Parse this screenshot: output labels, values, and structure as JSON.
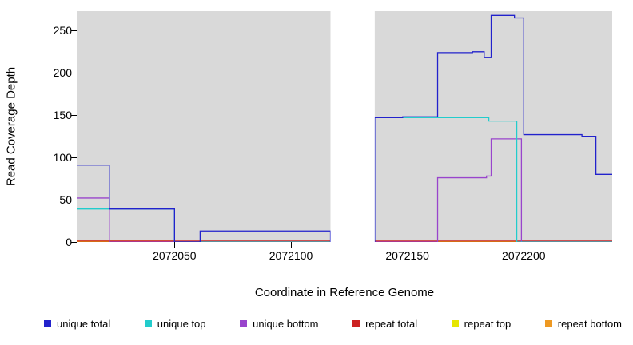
{
  "figure": {
    "x_axis_label": "Coordinate in Reference Genome",
    "y_axis_label": "Read Coverage Depth"
  },
  "chart_data": {
    "type": "line",
    "step": true,
    "title": "",
    "xlabel": "Coordinate in Reference Genome",
    "ylabel": "Read Coverage Depth",
    "xlim": [
      2072008,
      2072238
    ],
    "ylim": [
      0,
      273
    ],
    "x_ticks": [
      2072050,
      2072100,
      2072150,
      2072200
    ],
    "y_ticks": [
      0,
      50,
      100,
      150,
      200,
      250
    ],
    "plot_background": "#d9d9d9",
    "figure_background": "#ffffff",
    "grid": false,
    "legend_position": "bottom",
    "gap_region": {
      "start": 2072117,
      "end": 2072136,
      "color": "#ffffff"
    },
    "series": [
      {
        "name": "unique total",
        "color": "#2222cc",
        "end_x": 2072238,
        "steps": [
          [
            2072008,
            91
          ],
          [
            2072022,
            39
          ],
          [
            2072050,
            0
          ],
          [
            2072061,
            13
          ],
          [
            2072117,
            0
          ],
          [
            2072136,
            147
          ],
          [
            2072148,
            148
          ],
          [
            2072163,
            224
          ],
          [
            2072178,
            225
          ],
          [
            2072183,
            218
          ],
          [
            2072186,
            268
          ],
          [
            2072196,
            265
          ],
          [
            2072200,
            127
          ],
          [
            2072225,
            125
          ],
          [
            2072231,
            80
          ]
        ]
      },
      {
        "name": "unique top",
        "color": "#22cccc",
        "end_x": 2072238,
        "steps": [
          [
            2072008,
            39
          ],
          [
            2072050,
            0
          ],
          [
            2072136,
            147
          ],
          [
            2072185,
            143
          ],
          [
            2072197,
            0
          ]
        ]
      },
      {
        "name": "unique bottom",
        "color": "#9944cc",
        "end_x": 2072238,
        "steps": [
          [
            2072008,
            52
          ],
          [
            2072022,
            0
          ],
          [
            2072163,
            76
          ],
          [
            2072184,
            78
          ],
          [
            2072186,
            122
          ],
          [
            2072199,
            0
          ]
        ]
      },
      {
        "name": "repeat total",
        "color": "#cc2222",
        "end_x": 2072238,
        "steps": [
          [
            2072008,
            1
          ]
        ]
      },
      {
        "name": "repeat top",
        "color": "#e6e600",
        "end_x": 2072238,
        "steps": [
          [
            2072008,
            0
          ]
        ]
      },
      {
        "name": "repeat bottom",
        "color": "#ee9922",
        "end_x": 2072238,
        "steps": [
          [
            2072008,
            1
          ],
          [
            2072050,
            0
          ]
        ]
      }
    ]
  }
}
